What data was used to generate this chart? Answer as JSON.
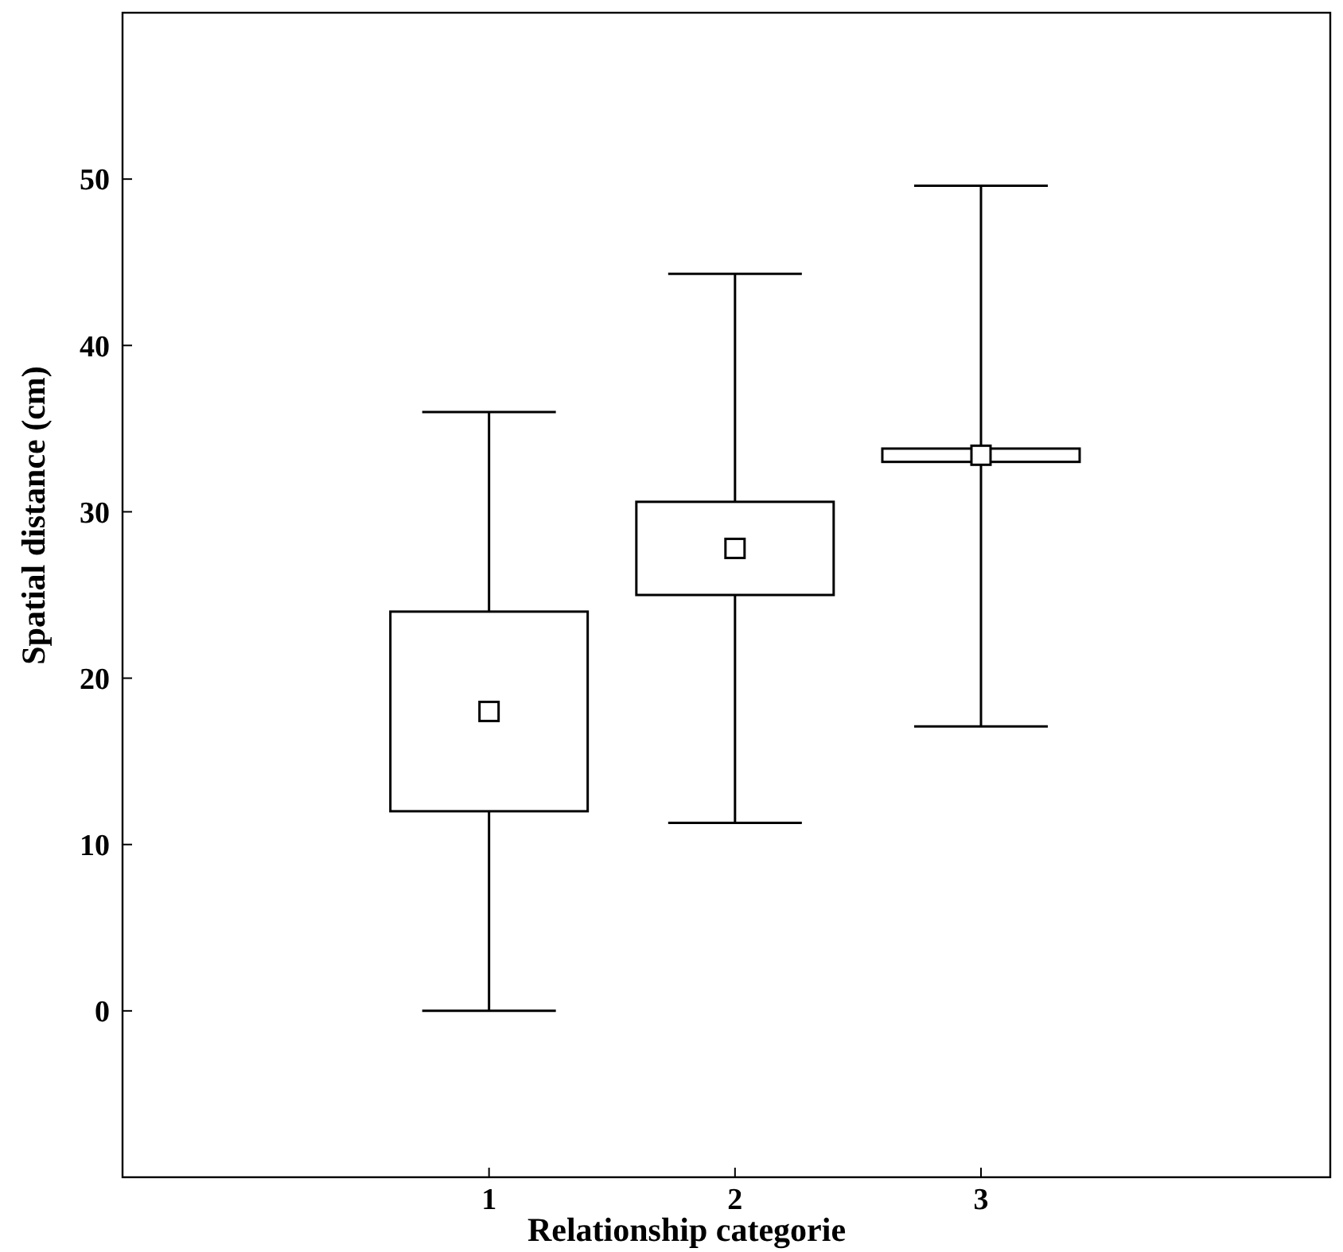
{
  "chart_data": {
    "type": "box",
    "xlabel": "Relationship categorie",
    "ylabel": "Spatial distance (cm)",
    "categories": [
      "1",
      "2",
      "3"
    ],
    "boxes": [
      {
        "low": 0,
        "q1": 12,
        "q3": 24,
        "high": 36,
        "mean": 18
      },
      {
        "low": 11.3,
        "q1": 25,
        "q3": 30.6,
        "high": 44.3,
        "mean": 27.8
      },
      {
        "low": 17.1,
        "q1": 33,
        "q3": 33.8,
        "high": 49.6,
        "mean": 33.4
      }
    ],
    "ylim": [
      -10,
      60
    ],
    "yticks": [
      0,
      10,
      20,
      30,
      40,
      50
    ],
    "grid": false,
    "marker": "square",
    "color": "#000000"
  }
}
